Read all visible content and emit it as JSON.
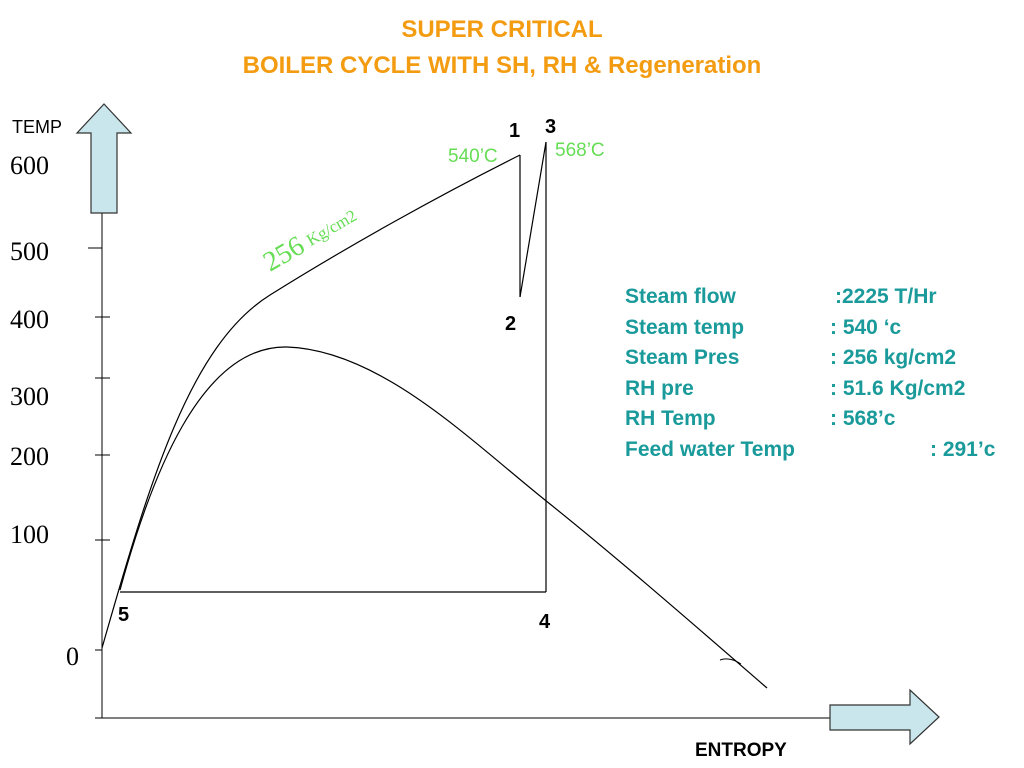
{
  "title": {
    "line1": "SUPER CRITICAL",
    "line2": "BOILER CYCLE WITH SH, RH & Regeneration"
  },
  "axes": {
    "y_label": "TEMP",
    "x_label": "ENTROPY",
    "y_ticks": [
      "600",
      "500",
      "400",
      "300",
      "200",
      "100",
      "0"
    ]
  },
  "points": {
    "p1": "1",
    "p2": "2",
    "p3": "3",
    "p4": "4",
    "p5": "5"
  },
  "annotations": {
    "temp_540": "540’C",
    "temp_568": "568’C",
    "pressure_value": "256",
    "pressure_unit": "Kg/cm2"
  },
  "specs": [
    {
      "label": "Steam flow",
      "value": ":2225 T/Hr"
    },
    {
      "label": "Steam temp",
      "value": ": 540 ‘c"
    },
    {
      "label": "Steam Pres",
      "value": ": 256 kg/cm2"
    },
    {
      "label": "RH pre",
      "value": ": 51.6 Kg/cm2"
    },
    {
      "label": "RH Temp",
      "value": ": 568’c"
    },
    {
      "label": "Feed water Temp",
      "value": ": 291’c"
    }
  ],
  "colors": {
    "title": "#f39c12",
    "info": "#1a9a9a",
    "annotation_green": "#66dd55",
    "arrow_fill": "#c9e6ec"
  }
}
